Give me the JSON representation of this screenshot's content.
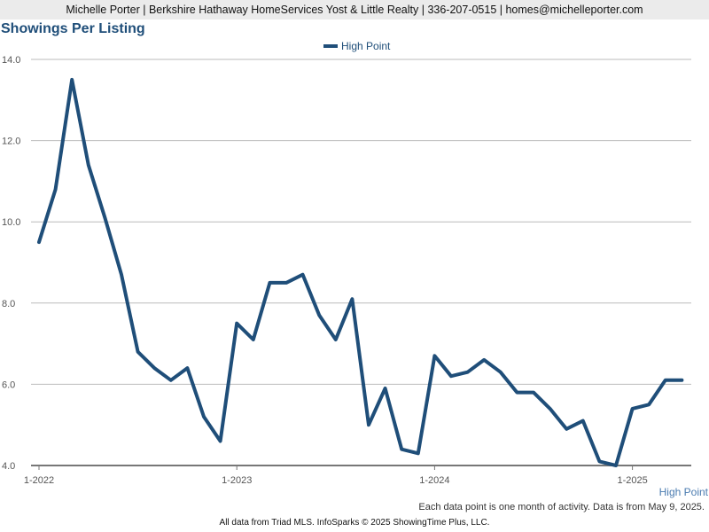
{
  "header": {
    "contact_line": "Michelle Porter | Berkshire Hathaway HomeServices Yost & Little Realty | 336-207-0515 | homes@michelleporter.com"
  },
  "chart_data": {
    "type": "line",
    "title": "Showings Per Listing",
    "xlabel": "",
    "ylabel": "",
    "x_tick_labels": [
      "1-2022",
      "1-2023",
      "1-2024",
      "1-2025"
    ],
    "y_tick_labels": [
      "4.0",
      "6.0",
      "8.0",
      "10.0",
      "12.0",
      "14.0"
    ],
    "ylim": [
      4.0,
      14.0
    ],
    "grid": true,
    "legend_position": "top-center",
    "x": [
      "2022-01",
      "2022-02",
      "2022-03",
      "2022-04",
      "2022-05",
      "2022-06",
      "2022-07",
      "2022-08",
      "2022-09",
      "2022-10",
      "2022-11",
      "2022-12",
      "2023-01",
      "2023-02",
      "2023-03",
      "2023-04",
      "2023-05",
      "2023-06",
      "2023-07",
      "2023-08",
      "2023-09",
      "2023-10",
      "2023-11",
      "2023-12",
      "2024-01",
      "2024-02",
      "2024-03",
      "2024-04",
      "2024-05",
      "2024-06",
      "2024-07",
      "2024-08",
      "2024-09",
      "2024-10",
      "2024-11",
      "2024-12",
      "2025-01",
      "2025-02",
      "2025-03",
      "2025-04"
    ],
    "series": [
      {
        "name": "High Point",
        "color": "#1f4e79",
        "values": [
          9.5,
          10.8,
          13.5,
          11.4,
          10.1,
          8.7,
          6.8,
          6.4,
          6.1,
          6.4,
          5.2,
          4.6,
          7.5,
          7.1,
          8.5,
          8.5,
          8.7,
          7.7,
          7.1,
          8.1,
          5.0,
          5.9,
          4.4,
          4.3,
          6.7,
          6.2,
          6.3,
          6.6,
          6.3,
          5.8,
          5.8,
          5.4,
          4.9,
          5.1,
          4.1,
          4.0,
          5.4,
          5.5,
          6.1,
          6.1
        ]
      }
    ],
    "series_label": "High Point",
    "footnote": "Each data point is one month of activity. Data is from May 9, 2025.",
    "credit": "All data from Triad MLS. InfoSparks © 2025 ShowingTime Plus, LLC."
  }
}
